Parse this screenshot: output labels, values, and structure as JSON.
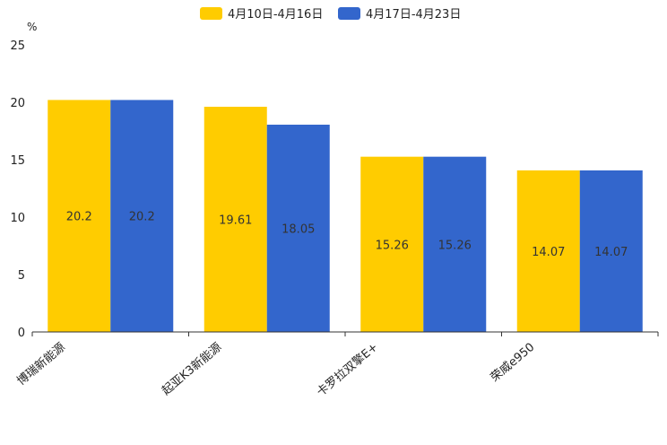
{
  "chart_data": {
    "type": "bar",
    "unit": "%",
    "categories": [
      "博瑞新能源",
      "起亚K3新能源",
      "卡罗拉双擎E+",
      "荣威e950"
    ],
    "series": [
      {
        "name": "4月10日-4月16日",
        "color": "#ffcc00",
        "values": [
          20.2,
          19.61,
          15.26,
          14.07
        ],
        "labels": [
          "20.2",
          "19.61",
          "15.26",
          "14.07"
        ]
      },
      {
        "name": "4月17日-4月23日",
        "color": "#3366cc",
        "values": [
          20.2,
          18.05,
          15.26,
          14.07
        ],
        "labels": [
          "20.2",
          "18.05",
          "15.26",
          "14.07"
        ]
      }
    ],
    "ylim": [
      0,
      25
    ],
    "yticks": [
      "0",
      "5",
      "10",
      "15",
      "20",
      "25"
    ],
    "legend_position": "top-center",
    "grid": false
  }
}
